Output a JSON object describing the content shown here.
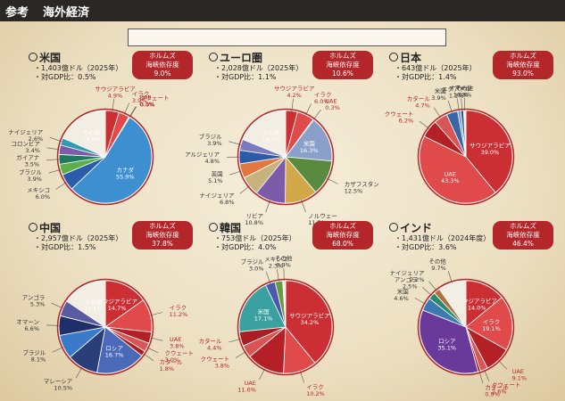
{
  "header": {
    "label": "参考",
    "title": "海外経済"
  },
  "note": "",
  "colors": {
    "badge": "#b3262a",
    "mideast": "#c9363a",
    "other": "#f2eee4"
  },
  "chart_data": [
    {
      "type": "pie",
      "country": "米国",
      "stat1": "・1,403億ドル（2025年）",
      "stat2": "・対GDP比：0.5%",
      "badge1": "ホルムズ",
      "badge2": "海峡依存度",
      "badge_value": "9.0%",
      "slices": [
        {
          "label": "サウジアラビア",
          "value": "4.9%",
          "v": 4.9,
          "me": true
        },
        {
          "label": "イラク",
          "value": "3.9%",
          "v": 3.9,
          "me": true
        },
        {
          "label": "UAE",
          "value": "0.3%",
          "v": 0.3,
          "me": true
        },
        {
          "label": "クウェート",
          "value": "0.0%",
          "v": 0.0,
          "me": true
        },
        {
          "label": "カナダ",
          "value": "55.9%",
          "v": 55.9,
          "me": false
        },
        {
          "label": "メキシコ",
          "value": "6.0%",
          "v": 6.0,
          "me": false
        },
        {
          "label": "ブラジル",
          "value": "3.9%",
          "v": 3.9,
          "me": false
        },
        {
          "label": "ガイアナ",
          "value": "3.5%",
          "v": 3.5,
          "me": false
        },
        {
          "label": "コロンビア",
          "value": "3.4%",
          "v": 3.4,
          "me": false
        },
        {
          "label": "ナイジェリア",
          "value": "2.6%",
          "v": 2.6,
          "me": false
        },
        {
          "label": "その他",
          "value": "19.0%",
          "v": 19.0,
          "me": false
        }
      ]
    },
    {
      "type": "pie",
      "country": "ユーロ圏",
      "stat1": "・2,028億ドル（2025年）",
      "stat2": "・対GDP比：1.1%",
      "badge1": "ホルムズ",
      "badge2": "海峡依存度",
      "badge_value": "10.6%",
      "slices": [
        {
          "label": "サウジアラビア",
          "value": "4.2%",
          "v": 4.2,
          "me": true
        },
        {
          "label": "イラク",
          "value": "6.0%",
          "v": 6.0,
          "me": true
        },
        {
          "label": "UAE",
          "value": "0.3%",
          "v": 0.3,
          "me": true
        },
        {
          "label": "米国",
          "value": "16.3%",
          "v": 16.3,
          "me": false
        },
        {
          "label": "カザフスタン",
          "value": "12.5%",
          "v": 12.5,
          "me": false
        },
        {
          "label": "ノルウェー",
          "value": "11.5%",
          "v": 11.5,
          "me": false
        },
        {
          "label": "リビア",
          "value": "10.8%",
          "v": 10.8,
          "me": false
        },
        {
          "label": "ナイジェリア",
          "value": "6.8%",
          "v": 6.8,
          "me": false
        },
        {
          "label": "英国",
          "value": "5.1%",
          "v": 5.1,
          "me": false
        },
        {
          "label": "アルジェリア",
          "value": "4.8%",
          "v": 4.8,
          "me": false
        },
        {
          "label": "ブラジル",
          "value": "3.9%",
          "v": 3.9,
          "me": false
        },
        {
          "label": "その他",
          "value": "19.1%",
          "v": 19.1,
          "me": false
        }
      ]
    },
    {
      "type": "pie",
      "country": "日本",
      "stat1": "・643億ドル（2025年）",
      "stat2": "・対GDP比：1.4%",
      "badge1": "ホルムズ",
      "badge2": "海峡依存度",
      "badge_value": "93.0%",
      "slices": [
        {
          "label": "サウジアラビア",
          "value": "39.0%",
          "v": 39.0,
          "me": true
        },
        {
          "label": "UAE",
          "value": "43.3%",
          "v": 43.3,
          "me": true
        },
        {
          "label": "クウェート",
          "value": "6.2%",
          "v": 6.2,
          "me": true
        },
        {
          "label": "カタール",
          "value": "4.7%",
          "v": 4.7,
          "me": true
        },
        {
          "label": "米国",
          "value": "3.9%",
          "v": 3.9,
          "me": false
        },
        {
          "label": "エクアドル",
          "value": "1.1%",
          "v": 1.1,
          "me": false
        },
        {
          "label": "オマーン",
          "value": "1.0%",
          "v": 1.0,
          "me": false
        },
        {
          "label": "その他",
          "value": "0.8%",
          "v": 0.8,
          "me": false
        }
      ]
    },
    {
      "type": "pie",
      "country": "中国",
      "stat1": "・2,957億ドル（2025年）",
      "stat2": "・対GDP比：1.5%",
      "badge1": "ホルムズ",
      "badge2": "海峡依存度",
      "badge_value": "37.8%",
      "slices": [
        {
          "label": "サウジアラビア",
          "value": "14.7%",
          "v": 14.7,
          "me": true
        },
        {
          "label": "イラク",
          "value": "11.2%",
          "v": 11.2,
          "me": true
        },
        {
          "label": "UAE",
          "value": "3.8%",
          "v": 3.8,
          "me": true
        },
        {
          "label": "クウェート",
          "value": "3.0%",
          "v": 3.0,
          "me": true
        },
        {
          "label": "カタール",
          "value": "1.8%",
          "v": 1.8,
          "me": true
        },
        {
          "label": "ロシア",
          "value": "16.7%",
          "v": 16.7,
          "me": false
        },
        {
          "label": "マレーシア",
          "value": "10.5%",
          "v": 10.5,
          "me": false
        },
        {
          "label": "ブラジル",
          "value": "8.1%",
          "v": 8.1,
          "me": false
        },
        {
          "label": "オマーン",
          "value": "6.6%",
          "v": 6.6,
          "me": false
        },
        {
          "label": "アンゴラ",
          "value": "5.3%",
          "v": 5.3,
          "me": false
        },
        {
          "label": "その他",
          "value": "15.1%",
          "v": 15.1,
          "me": false
        }
      ]
    },
    {
      "type": "pie",
      "country": "韓国",
      "stat1": "・753億ドル（2025年）",
      "stat2": "・対GDP比：4.0%",
      "badge1": "ホルムズ",
      "badge2": "海峡依存度",
      "badge_value": "68.0%",
      "slices": [
        {
          "label": "サウジアラビア",
          "value": "34.2%",
          "v": 34.2,
          "me": true
        },
        {
          "label": "イラク",
          "value": "10.2%",
          "v": 10.2,
          "me": true
        },
        {
          "label": "UAE",
          "value": "11.6%",
          "v": 11.6,
          "me": true
        },
        {
          "label": "クウェート",
          "value": "3.8%",
          "v": 3.8,
          "me": true
        },
        {
          "label": "カタール",
          "value": "4.4%",
          "v": 4.4,
          "me": true
        },
        {
          "label": "米国",
          "value": "17.1%",
          "v": 17.1,
          "me": false
        },
        {
          "label": "ブラジル",
          "value": "3.0%",
          "v": 3.0,
          "me": false
        },
        {
          "label": "メキシコ",
          "value": "2.3%",
          "v": 2.3,
          "me": false
        },
        {
          "label": "その他",
          "value": "0.9%",
          "v": 0.9,
          "me": false
        }
      ]
    },
    {
      "type": "pie",
      "country": "インド",
      "stat1": "・1,431億ドル（2024年度）",
      "stat2": "・対GDP比：3.6%",
      "badge1": "ホルムズ",
      "badge2": "海峡依存度",
      "badge_value": "46.4%",
      "slices": [
        {
          "label": "サウジアラビア",
          "value": "14.0%",
          "v": 14.0,
          "me": true
        },
        {
          "label": "イラク",
          "value": "19.1%",
          "v": 19.1,
          "me": true
        },
        {
          "label": "UAE",
          "value": "9.1%",
          "v": 9.1,
          "me": true
        },
        {
          "label": "クウェート",
          "value": "2.6%",
          "v": 2.6,
          "me": true
        },
        {
          "label": "カタール",
          "value": "0.9%",
          "v": 0.9,
          "me": true
        },
        {
          "label": "ロシア",
          "value": "35.1%",
          "v": 35.1,
          "me": false
        },
        {
          "label": "米国",
          "value": "4.6%",
          "v": 4.6,
          "me": false
        },
        {
          "label": "アンゴラ",
          "value": "2.5%",
          "v": 2.5,
          "me": false
        },
        {
          "label": "ナイジェリア",
          "value": "2.2%",
          "v": 2.2,
          "me": false
        },
        {
          "label": "その他",
          "value": "9.7%",
          "v": 9.7,
          "me": false
        }
      ]
    }
  ]
}
